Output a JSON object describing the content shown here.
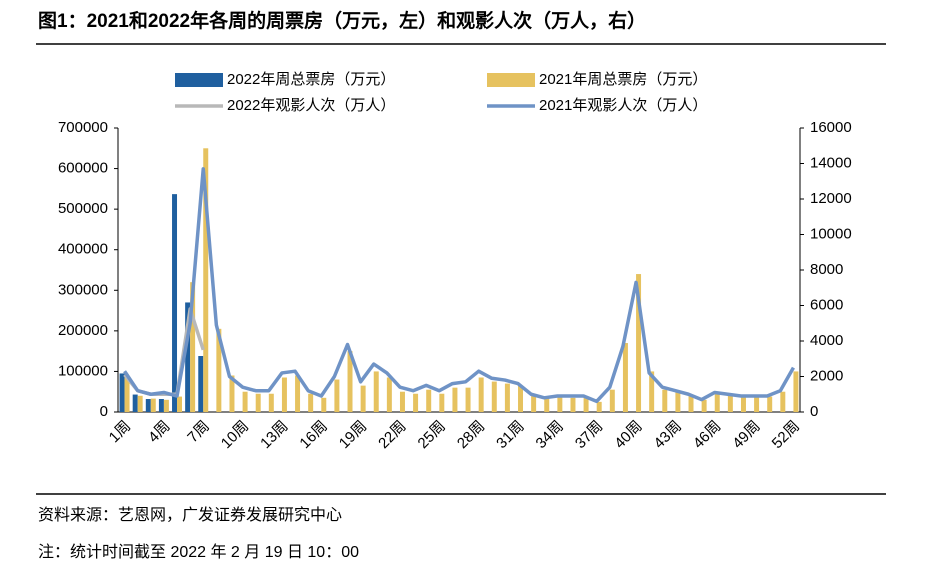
{
  "title": "图1：2021和2022年各周的周票房（万元，左）和观影人次（万人，右）",
  "chart_data": {
    "type": "bar_line",
    "categories": [
      "1周",
      null,
      null,
      "4周",
      null,
      null,
      "7周",
      null,
      null,
      "10周",
      null,
      null,
      "13周",
      null,
      null,
      "16周",
      null,
      null,
      "19周",
      null,
      null,
      "22周",
      null,
      null,
      "25周",
      null,
      null,
      "28周",
      null,
      null,
      "31周",
      null,
      null,
      "34周",
      null,
      null,
      "37周",
      null,
      null,
      "40周",
      null,
      null,
      "43周",
      null,
      null,
      "46周",
      null,
      null,
      "49周",
      null,
      null,
      "52周"
    ],
    "series": [
      {
        "name": "2022年周总票房（万元）",
        "type": "bar",
        "color": "#1f5f9f",
        "values": [
          95000,
          43000,
          32000,
          32000,
          537000,
          270000,
          138000,
          null,
          null,
          null,
          null,
          null,
          null,
          null,
          null,
          null,
          null,
          null,
          null,
          null,
          null,
          null,
          null,
          null,
          null,
          null,
          null,
          null,
          null,
          null,
          null,
          null,
          null,
          null,
          null,
          null,
          null,
          null,
          null,
          null,
          null,
          null,
          null,
          null,
          null,
          null,
          null,
          null,
          null,
          null,
          null,
          null
        ]
      },
      {
        "name": "2021年周总票房（万元）",
        "type": "bar",
        "color": "#e6c25f",
        "values": [
          85000,
          40000,
          33000,
          30000,
          38000,
          320000,
          650000,
          205000,
          90000,
          50000,
          45000,
          45000,
          85000,
          90000,
          45000,
          35000,
          80000,
          150000,
          65000,
          100000,
          85000,
          50000,
          45000,
          55000,
          45000,
          60000,
          60000,
          85000,
          75000,
          70000,
          65000,
          40000,
          35000,
          38000,
          35000,
          38000,
          25000,
          55000,
          170000,
          340000,
          100000,
          55000,
          50000,
          40000,
          30000,
          50000,
          45000,
          38000,
          38000,
          38000,
          50000,
          100000
        ]
      },
      {
        "name": "2022年观影人次（万人）",
        "type": "line",
        "axis": "y2",
        "color": "#b8b8b8",
        "values": [
          2100,
          1200,
          1000,
          1000,
          1000,
          5800,
          3500,
          null,
          null,
          null,
          null,
          null,
          null,
          null,
          null,
          null,
          null,
          null,
          null,
          null,
          null,
          null,
          null,
          null,
          null,
          null,
          null,
          null,
          null,
          null,
          null,
          null,
          null,
          null,
          null,
          null,
          null,
          null,
          null,
          null,
          null,
          null,
          null,
          null,
          null,
          null,
          null,
          null,
          null,
          null,
          null,
          null
        ]
      },
      {
        "name": "2021年观影人次（万人）",
        "type": "line",
        "axis": "y2",
        "color": "#6f93c6",
        "values": [
          2300,
          1200,
          1000,
          1100,
          900,
          5000,
          13700,
          4900,
          2000,
          1400,
          1200,
          1200,
          2200,
          2300,
          1200,
          900,
          2000,
          3800,
          1700,
          2700,
          2200,
          1400,
          1200,
          1500,
          1200,
          1600,
          1700,
          2300,
          1900,
          1800,
          1600,
          1000,
          800,
          900,
          900,
          900,
          600,
          1400,
          3700,
          7300,
          2200,
          1400,
          1200,
          1000,
          700,
          1100,
          1000,
          900,
          900,
          900,
          1200,
          2500
        ]
      }
    ],
    "ylim": [
      0,
      700000
    ],
    "yticks": [
      0,
      100000,
      200000,
      300000,
      400000,
      500000,
      600000,
      700000
    ],
    "y2lim": [
      0,
      16000
    ],
    "y2ticks": [
      0,
      2000,
      4000,
      6000,
      8000,
      10000,
      12000,
      14000,
      16000
    ]
  },
  "source": "资料来源：艺恩网，广发证券发展研究中心",
  "note": "注：统计时间截至 2022 年 2 月 19 日 10：00"
}
